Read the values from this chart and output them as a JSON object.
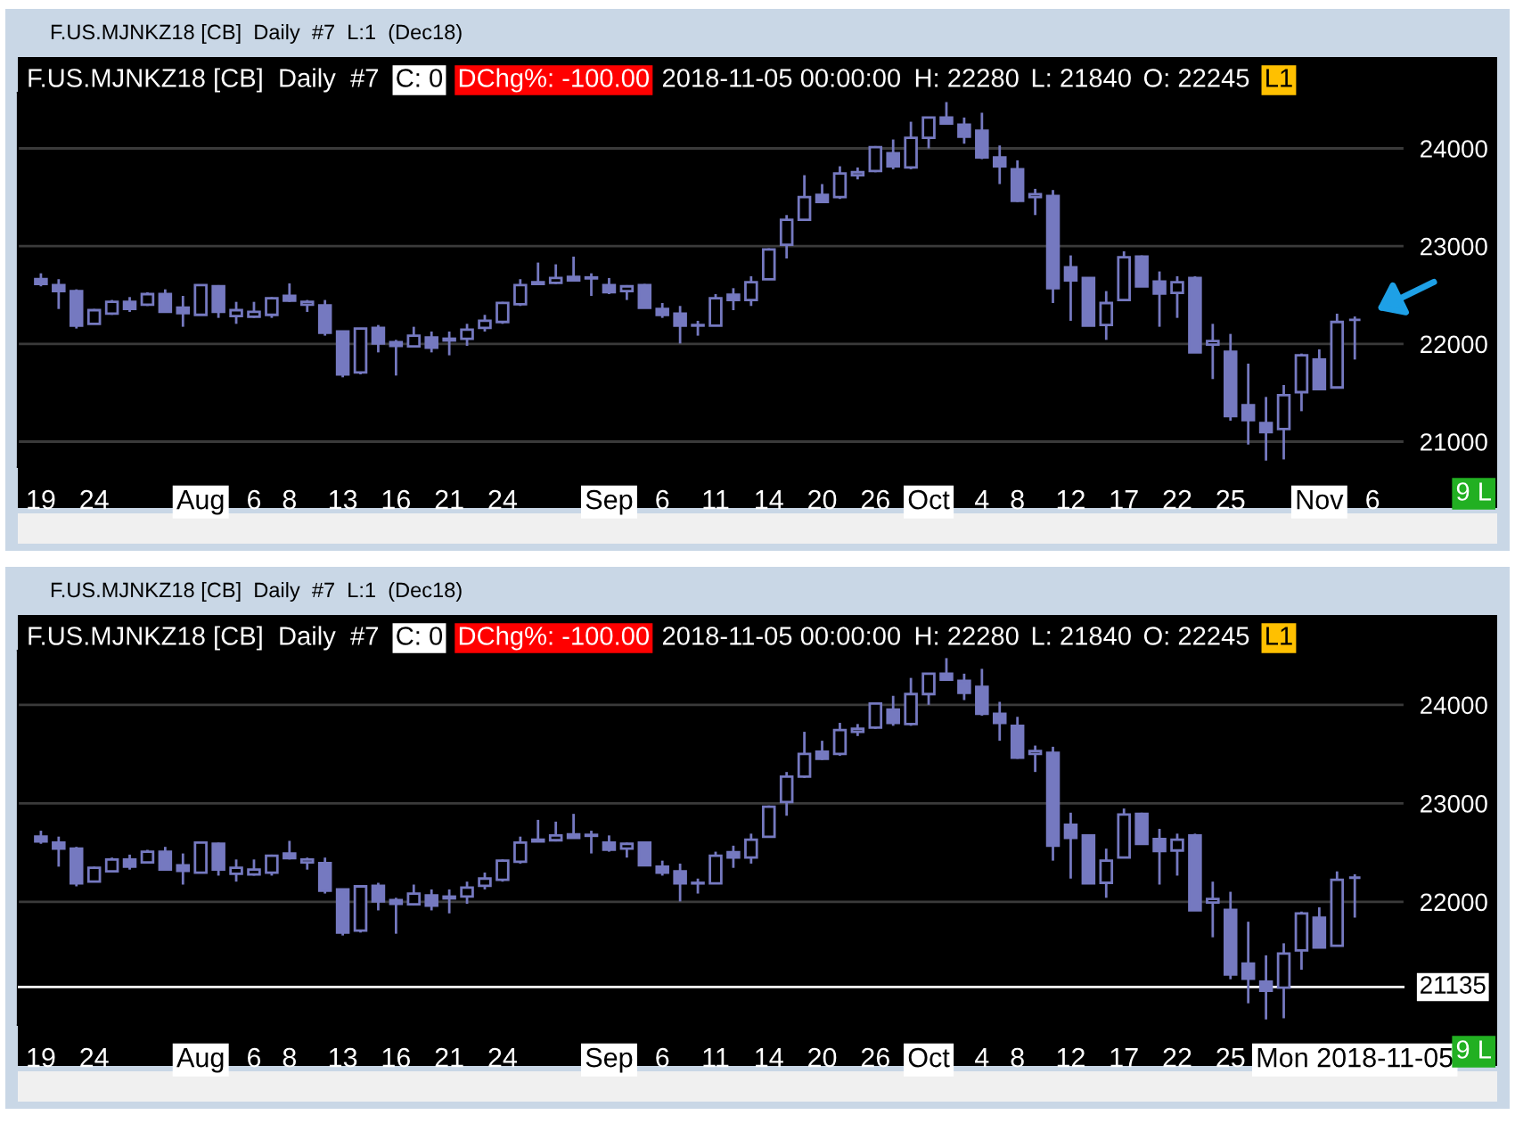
{
  "chart_data": [
    {
      "type": "candlestick",
      "title": "F.US.MJNKZ18 [CB]  Daily  #7  L:1  (Dec18)",
      "color": "#7579c0",
      "grid": "y",
      "annotations": [
        "F.US.MJNKZ18 [CB]  Daily  #7",
        "C: 0",
        "DChg%: -100.00",
        "2018-11-05 00:00:00",
        "H: 22280",
        "L: 21840",
        "O: 22245",
        "L1",
        "9 L"
      ],
      "categories": [
        "19",
        null,
        null,
        "24",
        null,
        null,
        null,
        null,
        null,
        "Aug",
        null,
        null,
        "6",
        null,
        "8",
        null,
        null,
        "13",
        null,
        null,
        "16",
        null,
        null,
        "21",
        null,
        null,
        "24",
        null,
        null,
        null,
        null,
        null,
        "Sep",
        null,
        null,
        "6",
        null,
        null,
        "11",
        null,
        null,
        "14",
        null,
        null,
        "20",
        null,
        null,
        "26",
        null,
        null,
        "Oct",
        null,
        null,
        "4",
        null,
        "8",
        null,
        null,
        "12",
        null,
        null,
        "17",
        null,
        null,
        "22",
        null,
        null,
        "25",
        null,
        null,
        null,
        null,
        "Nov",
        null,
        null,
        "6"
      ],
      "ohlc": [
        [
          22662,
          22722,
          22589,
          22613
        ],
        [
          22601,
          22662,
          22357,
          22540
        ],
        [
          22540,
          22558,
          22157,
          22187
        ],
        [
          22205,
          22357,
          22205,
          22345
        ],
        [
          22309,
          22449,
          22297,
          22430
        ],
        [
          22430,
          22479,
          22327,
          22357
        ],
        [
          22400,
          22528,
          22388,
          22509
        ],
        [
          22509,
          22558,
          22327,
          22327
        ],
        [
          22370,
          22491,
          22175,
          22315
        ],
        [
          22297,
          22601,
          22297,
          22601
        ],
        [
          22589,
          22601,
          22266,
          22327
        ],
        [
          22285,
          22430,
          22205,
          22345
        ],
        [
          22278,
          22430,
          22266,
          22327
        ],
        [
          22297,
          22479,
          22266,
          22467
        ],
        [
          22491,
          22619,
          22430,
          22443
        ],
        [
          22400,
          22449,
          22327,
          22430
        ],
        [
          22394,
          22449,
          22084,
          22114
        ],
        [
          22126,
          22126,
          21658,
          21688
        ],
        [
          21707,
          22163,
          21688,
          22157
        ],
        [
          22163,
          22193,
          21913,
          22005
        ],
        [
          22017,
          22041,
          21676,
          21980
        ],
        [
          21974,
          22175,
          21962,
          22084
        ],
        [
          22065,
          22126,
          21913,
          21962
        ],
        [
          22053,
          22126,
          21883,
          22035
        ],
        [
          22053,
          22205,
          21980,
          22145
        ],
        [
          22163,
          22297,
          22126,
          22236
        ],
        [
          22224,
          22430,
          22205,
          22419
        ],
        [
          22406,
          22662,
          22388,
          22601
        ],
        [
          22613,
          22832,
          22613,
          22631
        ],
        [
          22625,
          22814,
          22613,
          22674
        ],
        [
          22686,
          22893,
          22643,
          22650
        ],
        [
          22680,
          22722,
          22491,
          22670
        ],
        [
          22601,
          22674,
          22509,
          22528
        ],
        [
          22540,
          22601,
          22449,
          22589
        ],
        [
          22601,
          22613,
          22370,
          22370
        ],
        [
          22357,
          22418,
          22266,
          22297
        ],
        [
          22309,
          22388,
          22004,
          22187
        ],
        [
          22193,
          22236,
          22084,
          22187
        ],
        [
          22187,
          22509,
          22187,
          22467
        ],
        [
          22503,
          22570,
          22345,
          22449
        ],
        [
          22449,
          22692,
          22388,
          22631
        ],
        [
          22661,
          22978,
          22661,
          22966
        ],
        [
          23014,
          23318,
          22874,
          23270
        ],
        [
          23270,
          23726,
          23258,
          23501
        ],
        [
          23525,
          23635,
          23440,
          23452
        ],
        [
          23501,
          23817,
          23483,
          23744
        ],
        [
          23726,
          23805,
          23683,
          23756
        ],
        [
          23769,
          24024,
          23756,
          24012
        ],
        [
          23951,
          24091,
          23787,
          23817
        ],
        [
          23805,
          24273,
          23787,
          24109
        ],
        [
          24109,
          24316,
          24000,
          24316
        ],
        [
          24316,
          24474,
          24243,
          24255
        ],
        [
          24243,
          24316,
          24048,
          24121
        ],
        [
          24182,
          24365,
          23890,
          23908
        ],
        [
          23908,
          24030,
          23635,
          23817
        ],
        [
          23787,
          23878,
          23452,
          23464
        ],
        [
          23501,
          23586,
          23318,
          23531
        ],
        [
          23513,
          23574,
          22418,
          22570
        ],
        [
          22783,
          22905,
          22236,
          22649
        ],
        [
          22674,
          22674,
          22187,
          22187
        ],
        [
          22193,
          22540,
          22041,
          22418
        ],
        [
          22449,
          22947,
          22449,
          22887
        ],
        [
          22893,
          22905,
          22589,
          22589
        ],
        [
          22637,
          22741,
          22175,
          22515
        ],
        [
          22521,
          22692,
          22266,
          22631
        ],
        [
          22674,
          22692,
          21913,
          21913
        ],
        [
          21992,
          22205,
          21640,
          22029
        ],
        [
          21919,
          22102,
          21214,
          21262
        ],
        [
          21372,
          21798,
          20970,
          21220
        ],
        [
          21190,
          21457,
          20806,
          21098
        ],
        [
          21129,
          21579,
          20818,
          21475
        ],
        [
          21506,
          21901,
          21311,
          21883
        ],
        [
          21840,
          21944,
          21536,
          21536
        ],
        [
          21554,
          22309,
          21554,
          22224
        ],
        [
          22245,
          22280,
          21840,
          22245
        ],
        null
      ],
      "ylim": [
        20740,
        24570
      ],
      "yticks": [
        21000,
        22000,
        23000,
        24000
      ]
    },
    {
      "type": "candlestick",
      "title": "F.US.MJNKZ18 [CB]  Daily  #7  L:1  (Dec18)",
      "color": "#7579c0",
      "grid": "y",
      "annotations": [
        "F.US.MJNKZ18 [CB]  Daily  #7",
        "C: 0",
        "DChg%: -100.00",
        "2018-11-05 00:00:00",
        "H: 22280",
        "L: 21840",
        "O: 22245",
        "L1",
        "9 L"
      ],
      "categories": [
        "19",
        null,
        null,
        "24",
        null,
        null,
        null,
        null,
        null,
        "Aug",
        null,
        null,
        "6",
        null,
        "8",
        null,
        null,
        "13",
        null,
        null,
        "16",
        null,
        null,
        "21",
        null,
        null,
        "24",
        null,
        null,
        null,
        null,
        null,
        "Sep",
        null,
        null,
        "6",
        null,
        null,
        "11",
        null,
        null,
        "14",
        null,
        null,
        "20",
        null,
        null,
        "26",
        null,
        null,
        "Oct",
        null,
        null,
        "4",
        null,
        "8",
        null,
        null,
        "12",
        null,
        null,
        "17",
        null,
        null,
        "22",
        null,
        null,
        "25",
        null,
        null,
        null,
        null,
        null,
        null,
        "Mon 2018-11-05",
        null
      ],
      "ohlc": [
        [
          22662,
          22722,
          22589,
          22613
        ],
        [
          22601,
          22662,
          22357,
          22540
        ],
        [
          22540,
          22558,
          22157,
          22187
        ],
        [
          22205,
          22357,
          22205,
          22345
        ],
        [
          22309,
          22449,
          22297,
          22430
        ],
        [
          22430,
          22479,
          22327,
          22357
        ],
        [
          22400,
          22528,
          22388,
          22509
        ],
        [
          22509,
          22558,
          22327,
          22327
        ],
        [
          22370,
          22491,
          22175,
          22315
        ],
        [
          22297,
          22601,
          22297,
          22601
        ],
        [
          22589,
          22601,
          22266,
          22327
        ],
        [
          22285,
          22430,
          22205,
          22345
        ],
        [
          22278,
          22430,
          22266,
          22327
        ],
        [
          22297,
          22479,
          22266,
          22467
        ],
        [
          22491,
          22619,
          22430,
          22443
        ],
        [
          22400,
          22449,
          22327,
          22430
        ],
        [
          22394,
          22449,
          22084,
          22114
        ],
        [
          22126,
          22126,
          21658,
          21688
        ],
        [
          21707,
          22163,
          21688,
          22157
        ],
        [
          22163,
          22193,
          21913,
          22005
        ],
        [
          22017,
          22041,
          21676,
          21980
        ],
        [
          21974,
          22175,
          21962,
          22084
        ],
        [
          22065,
          22126,
          21913,
          21962
        ],
        [
          22053,
          22126,
          21883,
          22035
        ],
        [
          22053,
          22205,
          21980,
          22145
        ],
        [
          22163,
          22297,
          22126,
          22236
        ],
        [
          22224,
          22430,
          22205,
          22419
        ],
        [
          22406,
          22662,
          22388,
          22601
        ],
        [
          22613,
          22832,
          22613,
          22631
        ],
        [
          22625,
          22814,
          22613,
          22674
        ],
        [
          22686,
          22893,
          22643,
          22650
        ],
        [
          22680,
          22722,
          22491,
          22670
        ],
        [
          22601,
          22674,
          22509,
          22528
        ],
        [
          22540,
          22601,
          22449,
          22589
        ],
        [
          22601,
          22613,
          22370,
          22370
        ],
        [
          22357,
          22418,
          22266,
          22297
        ],
        [
          22309,
          22388,
          22004,
          22187
        ],
        [
          22193,
          22236,
          22084,
          22187
        ],
        [
          22187,
          22509,
          22187,
          22467
        ],
        [
          22503,
          22570,
          22345,
          22449
        ],
        [
          22449,
          22692,
          22388,
          22631
        ],
        [
          22661,
          22978,
          22661,
          22966
        ],
        [
          23014,
          23318,
          22874,
          23270
        ],
        [
          23270,
          23726,
          23258,
          23501
        ],
        [
          23525,
          23635,
          23440,
          23452
        ],
        [
          23501,
          23817,
          23483,
          23744
        ],
        [
          23726,
          23805,
          23683,
          23756
        ],
        [
          23769,
          24024,
          23756,
          24012
        ],
        [
          23951,
          24091,
          23787,
          23817
        ],
        [
          23805,
          24273,
          23787,
          24109
        ],
        [
          24109,
          24316,
          24000,
          24316
        ],
        [
          24316,
          24474,
          24243,
          24255
        ],
        [
          24243,
          24316,
          24048,
          24121
        ],
        [
          24182,
          24365,
          23890,
          23908
        ],
        [
          23908,
          24030,
          23635,
          23817
        ],
        [
          23787,
          23878,
          23452,
          23464
        ],
        [
          23501,
          23586,
          23318,
          23531
        ],
        [
          23513,
          23574,
          22418,
          22570
        ],
        [
          22783,
          22905,
          22236,
          22649
        ],
        [
          22674,
          22674,
          22187,
          22187
        ],
        [
          22193,
          22540,
          22041,
          22418
        ],
        [
          22449,
          22947,
          22449,
          22887
        ],
        [
          22893,
          22905,
          22589,
          22589
        ],
        [
          22637,
          22741,
          22175,
          22515
        ],
        [
          22521,
          22692,
          22266,
          22631
        ],
        [
          22674,
          22692,
          21913,
          21913
        ],
        [
          21992,
          22205,
          21640,
          22029
        ],
        [
          21919,
          22102,
          21214,
          21262
        ],
        [
          21372,
          21798,
          20970,
          21220
        ],
        [
          21190,
          21457,
          20806,
          21098
        ],
        [
          21129,
          21579,
          20818,
          21475
        ],
        [
          21506,
          21901,
          21311,
          21883
        ],
        [
          21840,
          21944,
          21536,
          21536
        ],
        [
          21554,
          22309,
          21554,
          22224
        ],
        [
          22245,
          22280,
          21840,
          22245
        ],
        null
      ],
      "ylim": [
        20750,
        24550
      ],
      "yticks": [
        22000,
        23000,
        24000
      ],
      "ref_lines": [
        {
          "axis": "y",
          "value": 21135,
          "label": "21135",
          "color": "#ffffff"
        }
      ]
    }
  ]
}
